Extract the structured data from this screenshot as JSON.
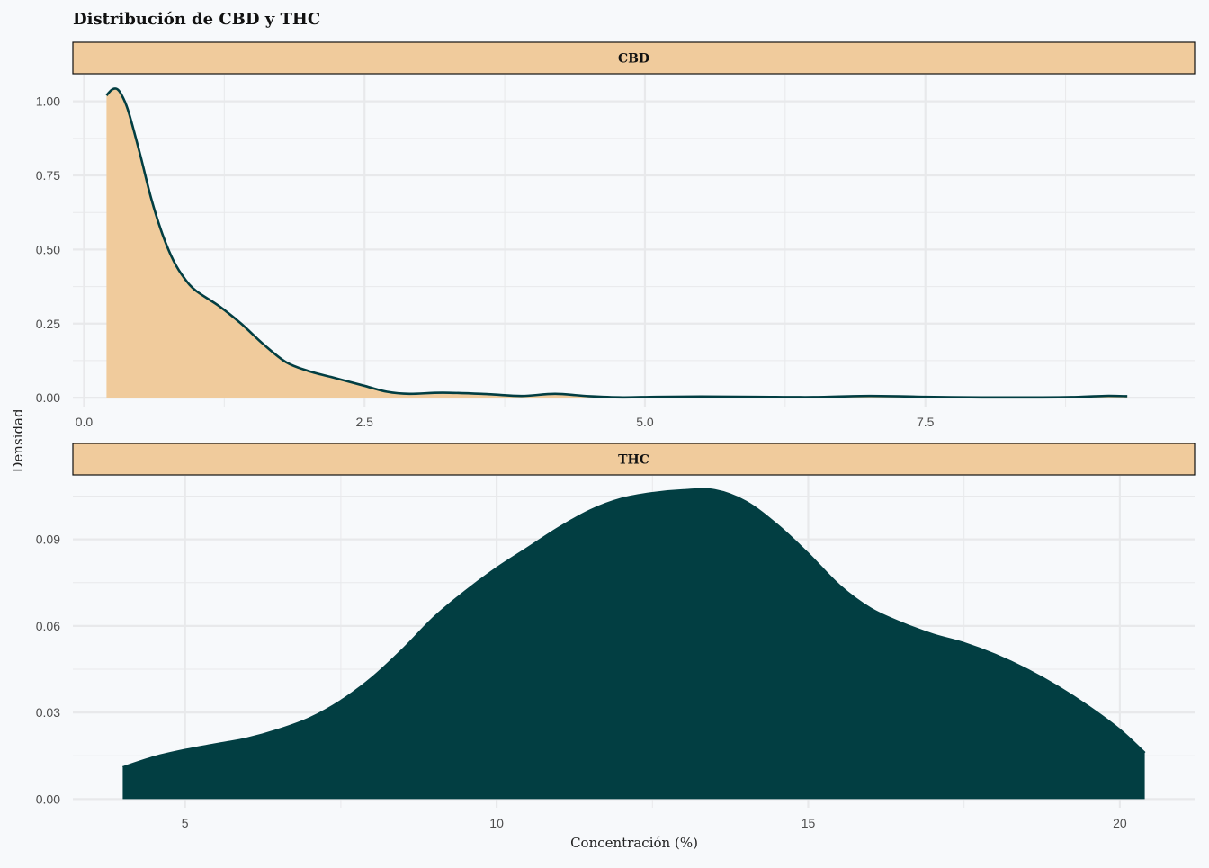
{
  "chart_data": {
    "type": "area",
    "title": "Distribución de CBD y THC",
    "xlabel": "Concentración (%)",
    "ylabel": "Densidad",
    "grid": true,
    "colors": {
      "background": "#f7f9fb",
      "strip_fill": "#f0cb9c",
      "strip_border": "#111111",
      "grid": "#e8e9eb",
      "dark": "#023e42",
      "light": "#f0cb9c"
    },
    "panels": [
      {
        "label": "CBD",
        "fill": "#f0cb9c",
        "line": "#023e42",
        "xlim": [
          -0.1,
          9.9
        ],
        "ylim": [
          -0.03,
          1.09
        ],
        "xticks": [
          0.0,
          2.5,
          5.0,
          7.5
        ],
        "xtick_labels": [
          "0.0",
          "2.5",
          "5.0",
          "7.5"
        ],
        "yticks": [
          0.0,
          0.25,
          0.5,
          0.75,
          1.0
        ],
        "ytick_labels": [
          "0.00",
          "0.25",
          "0.50",
          "0.75",
          "1.00"
        ],
        "x": [
          0.2,
          0.25,
          0.3,
          0.35,
          0.4,
          0.5,
          0.6,
          0.7,
          0.8,
          0.9,
          1.0,
          1.2,
          1.4,
          1.6,
          1.8,
          2.0,
          2.2,
          2.5,
          2.7,
          2.9,
          3.2,
          3.6,
          3.9,
          4.2,
          4.5,
          4.8,
          5.1,
          5.5,
          6.0,
          6.5,
          7.0,
          7.5,
          8.0,
          8.5,
          8.8,
          9.1,
          9.3
        ],
        "y": [
          1.02,
          1.04,
          1.04,
          1.01,
          0.96,
          0.82,
          0.67,
          0.55,
          0.46,
          0.4,
          0.36,
          0.31,
          0.25,
          0.18,
          0.12,
          0.09,
          0.07,
          0.04,
          0.02,
          0.013,
          0.017,
          0.012,
          0.006,
          0.013,
          0.005,
          0.001,
          0.003,
          0.004,
          0.003,
          0.002,
          0.006,
          0.003,
          0.001,
          0.001,
          0.002,
          0.006,
          0.005
        ]
      },
      {
        "label": "THC",
        "fill": "#023e42",
        "line": "#023e42",
        "xlim": [
          3.2,
          21.2
        ],
        "ylim": [
          -0.003,
          0.112
        ],
        "xticks": [
          5,
          10,
          15,
          20
        ],
        "xtick_labels": [
          "5",
          "10",
          "15",
          "20"
        ],
        "yticks": [
          0.0,
          0.03,
          0.06,
          0.09
        ],
        "ytick_labels": [
          "0.00",
          "0.03",
          "0.06",
          "0.09"
        ],
        "x": [
          4.0,
          4.5,
          5.0,
          5.5,
          6.0,
          6.5,
          7.0,
          7.5,
          8.0,
          8.5,
          9.0,
          9.5,
          10.0,
          10.5,
          11.0,
          11.5,
          12.0,
          12.5,
          13.0,
          13.5,
          14.0,
          14.5,
          15.0,
          15.5,
          16.0,
          16.5,
          17.0,
          17.5,
          18.0,
          18.5,
          19.0,
          19.5,
          20.0,
          20.4
        ],
        "y": [
          0.011,
          0.0145,
          0.017,
          0.019,
          0.021,
          0.024,
          0.028,
          0.034,
          0.042,
          0.052,
          0.063,
          0.072,
          0.08,
          0.087,
          0.094,
          0.1,
          0.104,
          0.106,
          0.107,
          0.107,
          0.103,
          0.095,
          0.085,
          0.074,
          0.066,
          0.061,
          0.057,
          0.054,
          0.05,
          0.045,
          0.039,
          0.032,
          0.024,
          0.016
        ]
      }
    ]
  }
}
